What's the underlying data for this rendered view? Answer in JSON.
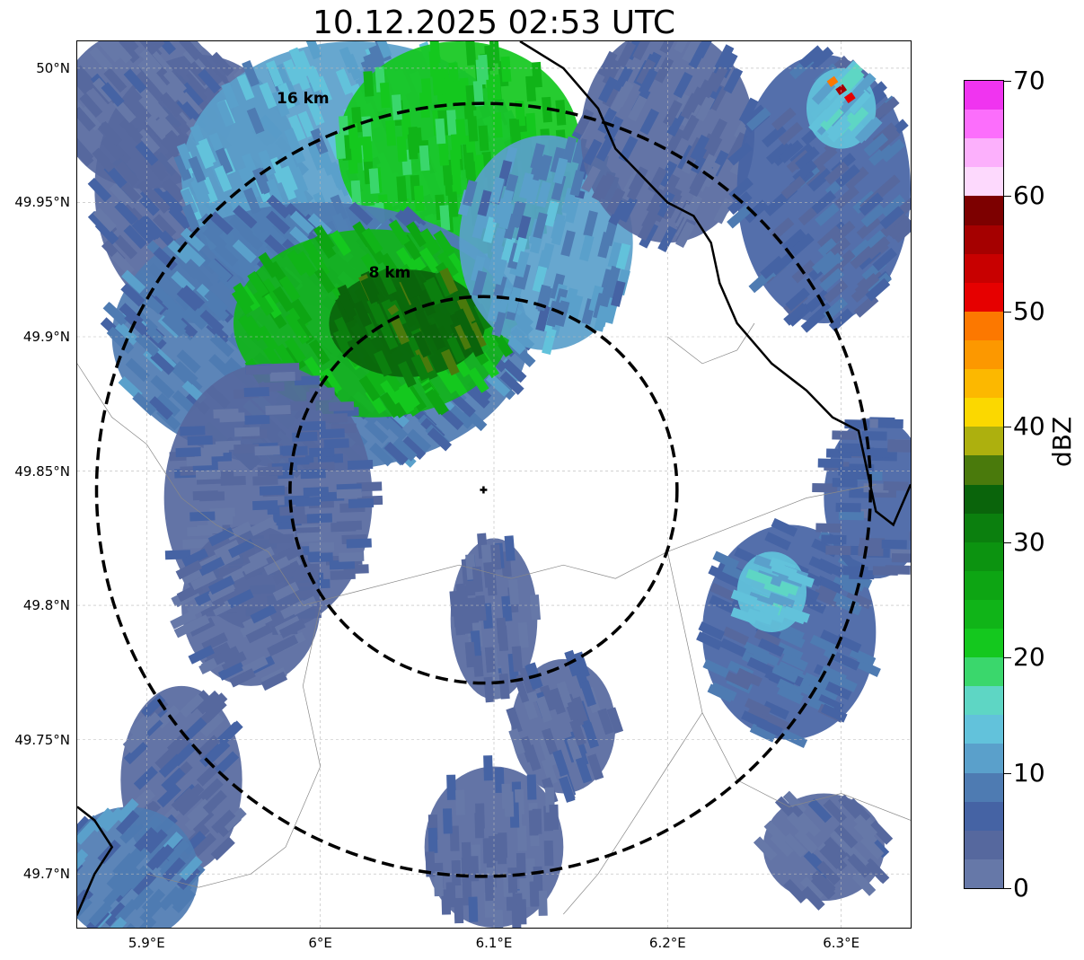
{
  "title": "10.12.2025 02:53 UTC",
  "map": {
    "lon_range": [
      5.86,
      6.34
    ],
    "lat_range": [
      49.68,
      50.01
    ],
    "lat_ticks": [
      {
        "value": 50.0,
        "label": "50°N"
      },
      {
        "value": 49.95,
        "label": "49.95°N"
      },
      {
        "value": 49.9,
        "label": "49.9°N"
      },
      {
        "value": 49.85,
        "label": "49.85°N"
      },
      {
        "value": 49.8,
        "label": "49.8°N"
      },
      {
        "value": 49.75,
        "label": "49.75°N"
      },
      {
        "value": 49.7,
        "label": "49.7°N"
      }
    ],
    "lon_ticks": [
      {
        "value": 5.9,
        "label": "5.9°E"
      },
      {
        "value": 6.0,
        "label": "6°E"
      },
      {
        "value": 6.1,
        "label": "6.1°E"
      },
      {
        "value": 6.2,
        "label": "6.2°E"
      },
      {
        "value": 6.3,
        "label": "6.3°E"
      }
    ],
    "radar_site": {
      "lon": 6.094,
      "lat": 49.843
    },
    "range_rings": [
      {
        "radius_km": 8,
        "label": "8 km",
        "label_lon": 6.04,
        "label_lat": 49.922
      },
      {
        "radius_km": 16,
        "label": "16 km",
        "label_lon": 5.99,
        "label_lat": 49.987
      }
    ],
    "grid": true
  },
  "colorbar": {
    "label": "dBZ",
    "min": 0,
    "max": 70,
    "step": 5,
    "ticks": [
      0,
      10,
      20,
      30,
      40,
      50,
      60,
      70
    ],
    "colors": [
      "#6678a8",
      "#56689e",
      "#4563a4",
      "#4e7bb2",
      "#5aa0cb",
      "#62c2db",
      "#5ed6c4",
      "#3ad76c",
      "#14c81e",
      "#10b418",
      "#0da513",
      "#0c9310",
      "#0b7f0e",
      "#0a640b",
      "#4a7a0c",
      "#adb00e",
      "#fbd800",
      "#fcb800",
      "#fc9800",
      "#fc7800",
      "#e60000",
      "#c80000",
      "#a50000",
      "#7d0000",
      "#fdd9fd",
      "#fcb0fc",
      "#fc6efc",
      "#f034f0"
    ]
  },
  "echoes": [
    {
      "lon": 5.93,
      "lat": 49.955,
      "rx": 0.06,
      "ry": 0.05,
      "dbz": 4
    },
    {
      "lon": 5.9,
      "lat": 49.985,
      "rx": 0.05,
      "ry": 0.03,
      "dbz": 3
    },
    {
      "lon": 6.02,
      "lat": 49.96,
      "rx": 0.1,
      "ry": 0.05,
      "dbz": 12
    },
    {
      "lon": 6.08,
      "lat": 49.97,
      "rx": 0.07,
      "ry": 0.04,
      "dbz": 22
    },
    {
      "lon": 6.0,
      "lat": 49.9,
      "rx": 0.12,
      "ry": 0.05,
      "dbz": 8
    },
    {
      "lon": 6.03,
      "lat": 49.905,
      "rx": 0.08,
      "ry": 0.035,
      "dbz": 24
    },
    {
      "lon": 6.05,
      "lat": 49.905,
      "rx": 0.045,
      "ry": 0.02,
      "dbz": 33
    },
    {
      "lon": 5.97,
      "lat": 49.84,
      "rx": 0.06,
      "ry": 0.05,
      "dbz": 4
    },
    {
      "lon": 5.96,
      "lat": 49.8,
      "rx": 0.04,
      "ry": 0.03,
      "dbz": 3
    },
    {
      "lon": 6.13,
      "lat": 49.935,
      "rx": 0.05,
      "ry": 0.04,
      "dbz": 10
    },
    {
      "lon": 6.2,
      "lat": 49.975,
      "rx": 0.05,
      "ry": 0.04,
      "dbz": 4
    },
    {
      "lon": 6.29,
      "lat": 49.955,
      "rx": 0.05,
      "ry": 0.05,
      "dbz": 6
    },
    {
      "lon": 6.3,
      "lat": 49.985,
      "rx": 0.02,
      "ry": 0.015,
      "dbz": 14
    },
    {
      "lon": 6.1,
      "lat": 49.795,
      "rx": 0.025,
      "ry": 0.03,
      "dbz": 4
    },
    {
      "lon": 6.14,
      "lat": 49.755,
      "rx": 0.03,
      "ry": 0.025,
      "dbz": 4
    },
    {
      "lon": 6.27,
      "lat": 49.79,
      "rx": 0.05,
      "ry": 0.04,
      "dbz": 7
    },
    {
      "lon": 6.26,
      "lat": 49.805,
      "rx": 0.02,
      "ry": 0.015,
      "dbz": 13
    },
    {
      "lon": 6.29,
      "lat": 49.71,
      "rx": 0.035,
      "ry": 0.02,
      "dbz": 3
    },
    {
      "lon": 5.92,
      "lat": 49.735,
      "rx": 0.035,
      "ry": 0.035,
      "dbz": 4
    },
    {
      "lon": 5.89,
      "lat": 49.7,
      "rx": 0.04,
      "ry": 0.025,
      "dbz": 9
    },
    {
      "lon": 6.1,
      "lat": 49.71,
      "rx": 0.04,
      "ry": 0.03,
      "dbz": 3
    },
    {
      "lon": 6.32,
      "lat": 49.84,
      "rx": 0.03,
      "ry": 0.03,
      "dbz": 5
    }
  ],
  "spots": [
    {
      "lon": 6.295,
      "lat": 49.995,
      "dbz": 48
    },
    {
      "lon": 6.3,
      "lat": 49.992,
      "dbz": 57
    },
    {
      "lon": 6.305,
      "lat": 49.989,
      "dbz": 52
    },
    {
      "lon": 6.042,
      "lat": 49.91,
      "dbz": 37
    }
  ],
  "border_lines": [
    [
      [
        6.115,
        50.01
      ],
      [
        6.14,
        50.0
      ],
      [
        6.16,
        49.985
      ],
      [
        6.17,
        49.97
      ],
      [
        6.185,
        49.96
      ],
      [
        6.2,
        49.95
      ],
      [
        6.215,
        49.945
      ],
      [
        6.225,
        49.935
      ],
      [
        6.23,
        49.92
      ],
      [
        6.24,
        49.905
      ],
      [
        6.26,
        49.89
      ],
      [
        6.28,
        49.88
      ],
      [
        6.295,
        49.87
      ],
      [
        6.31,
        49.865
      ],
      [
        6.315,
        49.85
      ],
      [
        6.32,
        49.835
      ],
      [
        6.33,
        49.83
      ],
      [
        6.34,
        49.845
      ]
    ],
    [
      [
        5.86,
        49.725
      ],
      [
        5.87,
        49.72
      ],
      [
        5.88,
        49.71
      ],
      [
        5.87,
        49.7
      ],
      [
        5.86,
        49.685
      ],
      [
        5.855,
        49.68
      ]
    ]
  ],
  "admin_lines": [
    [
      [
        5.86,
        49.89
      ],
      [
        5.88,
        49.87
      ],
      [
        5.9,
        49.86
      ],
      [
        5.92,
        49.84
      ],
      [
        5.94,
        49.83
      ],
      [
        5.97,
        49.82
      ],
      [
        5.99,
        49.8
      ],
      [
        6.02,
        49.805
      ],
      [
        6.05,
        49.81
      ],
      [
        6.08,
        49.815
      ],
      [
        6.11,
        49.81
      ],
      [
        6.14,
        49.815
      ],
      [
        6.17,
        49.81
      ],
      [
        6.2,
        49.82
      ],
      [
        6.24,
        49.83
      ],
      [
        6.28,
        49.84
      ],
      [
        6.32,
        49.845
      ]
    ],
    [
      [
        6.0,
        49.8
      ],
      [
        5.99,
        49.77
      ],
      [
        6.0,
        49.74
      ],
      [
        5.98,
        49.71
      ],
      [
        5.96,
        49.7
      ],
      [
        5.93,
        49.695
      ],
      [
        5.9,
        49.7
      ]
    ],
    [
      [
        6.2,
        49.82
      ],
      [
        6.21,
        49.79
      ],
      [
        6.22,
        49.76
      ],
      [
        6.24,
        49.735
      ],
      [
        6.27,
        49.725
      ],
      [
        6.3,
        49.73
      ],
      [
        6.34,
        49.72
      ]
    ],
    [
      [
        6.22,
        49.76
      ],
      [
        6.2,
        49.74
      ],
      [
        6.18,
        49.72
      ],
      [
        6.16,
        49.7
      ],
      [
        6.14,
        49.685
      ]
    ],
    [
      [
        6.2,
        49.9
      ],
      [
        6.22,
        49.89
      ],
      [
        6.24,
        49.895
      ],
      [
        6.25,
        49.905
      ]
    ]
  ]
}
